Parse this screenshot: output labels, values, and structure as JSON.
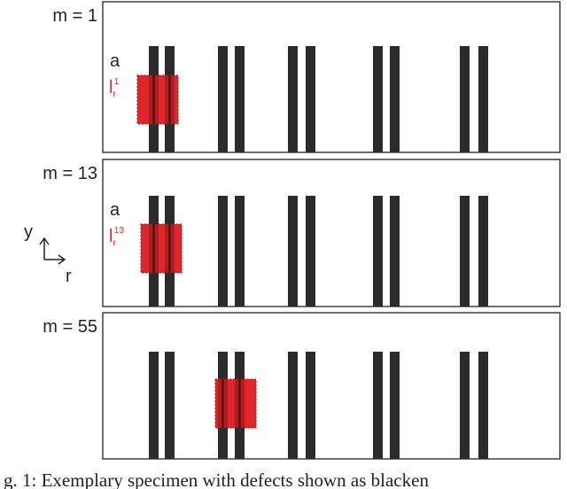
{
  "panels": [
    {
      "label": "m = 1",
      "annotation": "a",
      "length_symbol": "l",
      "length_sub": "r",
      "length_sup": "1"
    },
    {
      "label": "m = 13",
      "annotation": "a",
      "length_symbol": "l",
      "length_sub": "r",
      "length_sup": "13"
    },
    {
      "label": "m = 55"
    }
  ],
  "axes": {
    "y": "y",
    "r": "r"
  },
  "caption": "g. 1: Exemplary specimen with defects shown as blacken"
}
